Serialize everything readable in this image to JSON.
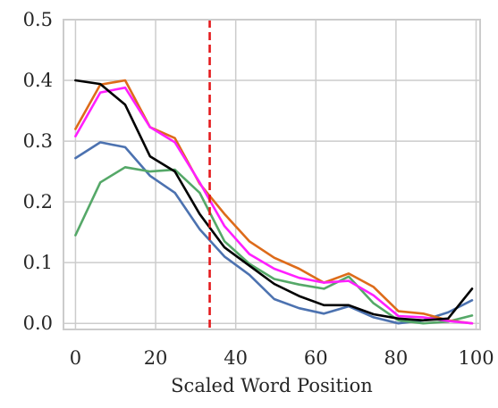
{
  "chart_data": {
    "type": "line",
    "title": "",
    "xlabel": "Scaled Word Position",
    "ylabel": "",
    "xlim": [
      -3,
      101
    ],
    "ylim": [
      -0.01,
      0.5
    ],
    "xticks": [
      0,
      20,
      40,
      60,
      80,
      100
    ],
    "xtick_labels": [
      "0",
      "20",
      "40",
      "60",
      "80",
      "100"
    ],
    "yticks": [
      0.0,
      0.1,
      0.2,
      0.3,
      0.4,
      0.5
    ],
    "ytick_labels": [
      "0.0",
      "0.1",
      "0.2",
      "0.3",
      "0.4",
      "0.5"
    ],
    "grid": true,
    "x": [
      0,
      6.2,
      12.4,
      18.6,
      24.8,
      31,
      37.2,
      43.4,
      49.6,
      55.8,
      62,
      68.2,
      74.4,
      80.6,
      86.8,
      93,
      99
    ],
    "reference_line": {
      "x": 33.5,
      "color": "#e41a1c",
      "style": "dashed"
    },
    "series": [
      {
        "color": "#4c72b0",
        "values": [
          0.272,
          0.298,
          0.29,
          0.243,
          0.215,
          0.155,
          0.11,
          0.08,
          0.04,
          0.025,
          0.016,
          0.028,
          0.01,
          0.0,
          0.005,
          0.018,
          0.038
        ]
      },
      {
        "color": "#55a868",
        "values": [
          0.145,
          0.232,
          0.257,
          0.25,
          0.253,
          0.215,
          0.135,
          0.098,
          0.073,
          0.064,
          0.057,
          0.077,
          0.033,
          0.005,
          0.0,
          0.003,
          0.013
        ]
      },
      {
        "color": "#dd6b1a",
        "values": [
          0.32,
          0.393,
          0.4,
          0.323,
          0.305,
          0.23,
          0.18,
          0.135,
          0.108,
          0.09,
          0.067,
          0.082,
          0.06,
          0.02,
          0.016,
          0.005,
          0.0
        ]
      },
      {
        "color": "#ff1fff",
        "values": [
          0.308,
          0.38,
          0.388,
          0.323,
          0.298,
          0.232,
          0.16,
          0.114,
          0.09,
          0.075,
          0.067,
          0.07,
          0.046,
          0.012,
          0.01,
          0.004,
          0.0
        ]
      },
      {
        "color": "#000000",
        "values": [
          0.4,
          0.394,
          0.36,
          0.275,
          0.25,
          0.18,
          0.125,
          0.095,
          0.065,
          0.045,
          0.03,
          0.03,
          0.015,
          0.008,
          0.005,
          0.008,
          0.057
        ]
      }
    ]
  }
}
